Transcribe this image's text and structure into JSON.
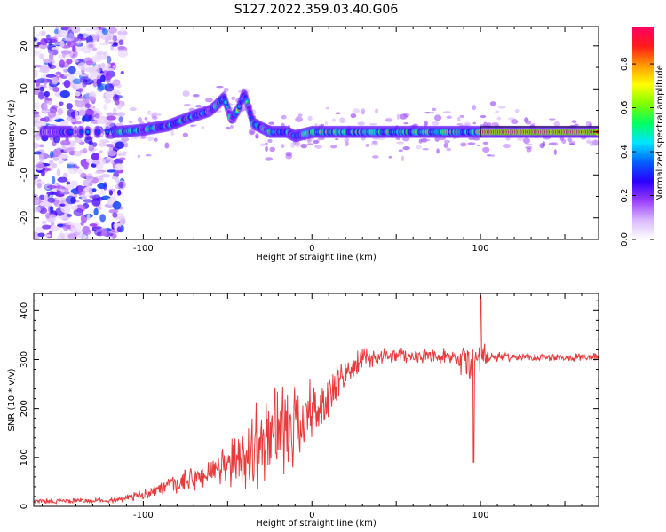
{
  "title": "S127.2022.359.03.40.G06",
  "chart_data": [
    {
      "type": "heatmap",
      "xlabel": "Height of straight line (km)",
      "ylabel": "Frequency (Hz)",
      "xlim": [
        -165,
        170
      ],
      "ylim": [
        -25,
        24.5
      ],
      "xticks": [
        -100,
        0,
        100
      ],
      "yticks": [
        -20,
        -10,
        0,
        10,
        20
      ],
      "colorbar": {
        "label": "Normalized spectral amplitude",
        "range": [
          0,
          0.97
        ],
        "ticks": [
          0.0,
          0.2,
          0.4,
          0.6,
          0.8
        ],
        "tick_labels": [
          "0.0",
          "0.2",
          "0.4",
          "0.6",
          "0.8"
        ],
        "colormap": [
          "#ffffff",
          "#d9b8ff",
          "#9a3dff",
          "#2a00ff",
          "#0060ff",
          "#00e5ff",
          "#00ff60",
          "#7fff00",
          "#ffff00",
          "#ff9900",
          "#ff1a1a",
          "#ff0066"
        ]
      },
      "ridge": {
        "comment": "frequency of the main signal trace along height",
        "x": [
          -150,
          -130,
          -115,
          -100,
          -85,
          -75,
          -60,
          -52,
          -48,
          -44,
          -40,
          -35,
          -25,
          -15,
          -10,
          0,
          20,
          50,
          80,
          95,
          100,
          170
        ],
        "freq": [
          0,
          0,
          0,
          0.5,
          1.5,
          3,
          5,
          8,
          3,
          5,
          9,
          2,
          0,
          0,
          -1,
          0,
          0,
          0,
          0,
          0,
          0,
          0
        ]
      },
      "noise_region": {
        "x": [
          -165,
          -112
        ],
        "freq": [
          -25,
          24.5
        ]
      },
      "strong_band": {
        "x": [
          100,
          170
        ],
        "freq": 0,
        "amplitude": 0.95
      }
    },
    {
      "type": "line",
      "xlabel": "Height of straight line (km)",
      "ylabel": "SNR (10 * v/v)",
      "xlim": [
        -165,
        170
      ],
      "ylim": [
        0,
        435
      ],
      "xticks": [
        -100,
        0,
        100
      ],
      "yticks": [
        0,
        100,
        200,
        300,
        400
      ],
      "color": "#e83a3a",
      "envelope": {
        "x": [
          -165,
          -120,
          -105,
          -90,
          -70,
          -55,
          -40,
          -30,
          -20,
          -10,
          0,
          10,
          20,
          30,
          50,
          70,
          85,
          95,
          100,
          105,
          120,
          170
        ],
        "mean": [
          10,
          12,
          20,
          35,
          55,
          75,
          100,
          130,
          150,
          170,
          190,
          220,
          270,
          300,
          310,
          305,
          300,
          290,
          300,
          305,
          305,
          305
        ],
        "amp": [
          6,
          6,
          10,
          18,
          30,
          45,
          70,
          110,
          100,
          90,
          80,
          60,
          40,
          25,
          18,
          15,
          25,
          70,
          60,
          12,
          10,
          10
        ]
      },
      "notable_points": [
        {
          "x": -22,
          "y": 240
        },
        {
          "x": 96,
          "y": 90
        },
        {
          "x": 100,
          "y": 430
        }
      ]
    }
  ]
}
